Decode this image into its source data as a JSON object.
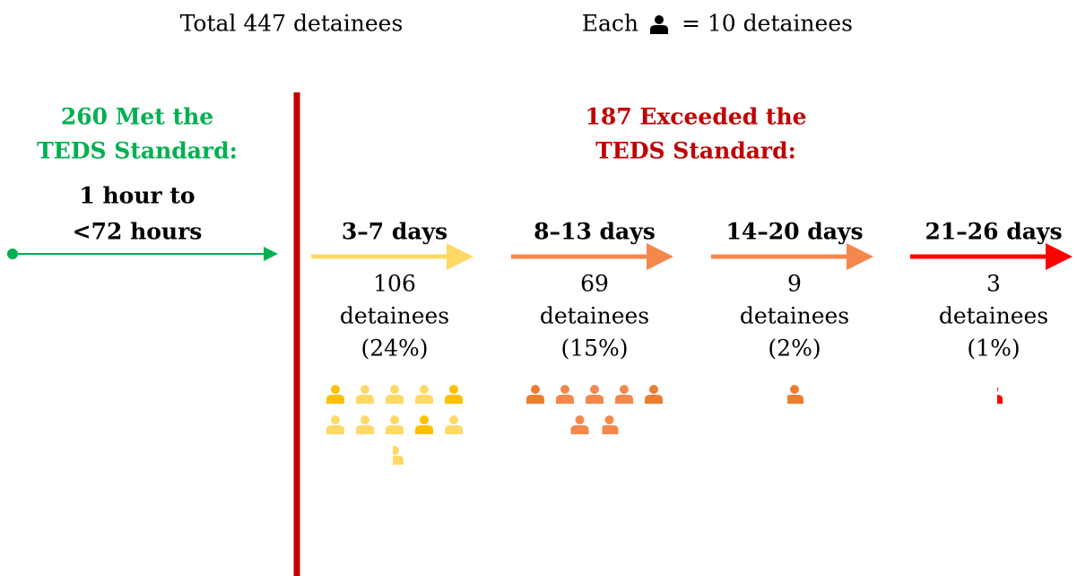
{
  "header": {
    "total": "Total 447 detainees",
    "legend_prefix": "Each",
    "legend_suffix": "= 10 detainees"
  },
  "icon_value": 10,
  "met": {
    "title_line1": "260 Met the",
    "title_line2": "TEDS Standard:",
    "range_line1": "1 hour to",
    "range_line2": "<72 hours",
    "color": "#00b050"
  },
  "exceeded": {
    "title_line1": "187 Exceeded the",
    "title_line2": "TEDS Standard:",
    "color": "#c00000"
  },
  "groups": [
    {
      "label": "3–7 days",
      "count": 106,
      "unit": "detainees",
      "percent_label": "(24%)",
      "color": "#ffd966",
      "icon_color": "#ffc000"
    },
    {
      "label": "8–13 days",
      "count": 69,
      "unit": "detainees",
      "percent_label": "(15%)",
      "color": "#f4874b",
      "icon_color": "#ed7d31"
    },
    {
      "label": "14–20 days",
      "count": 9,
      "unit": "detainees",
      "percent_label": "(2%)",
      "color": "#f4874b",
      "icon_color": "#ed7d31"
    },
    {
      "label": "21–26 days",
      "count": 3,
      "unit": "detainees",
      "percent_label": "(1%)",
      "color": "#ff0000",
      "icon_color": "#ff0000"
    }
  ]
}
